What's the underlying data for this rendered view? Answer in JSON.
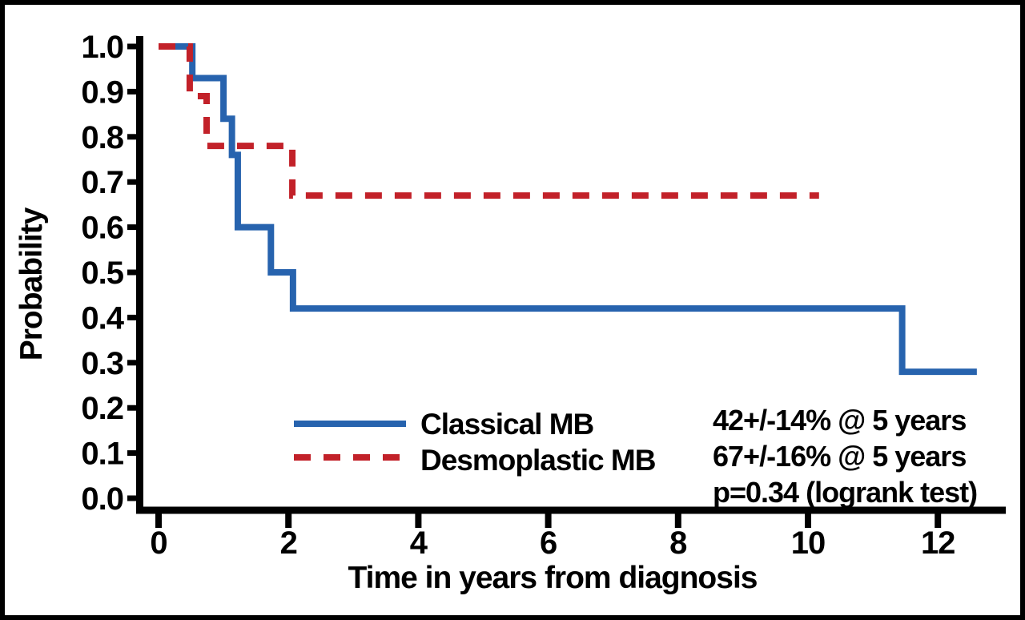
{
  "figure": {
    "background": "#ffffff",
    "border_color": "#000000"
  },
  "chart_data": {
    "type": "line",
    "subtype": "kaplan-meier-step",
    "title": "",
    "xlabel": "Time in years from diagnosis",
    "ylabel": "Probability",
    "xlim": [
      0,
      13
    ],
    "ylim": [
      0.0,
      1.0
    ],
    "xticks": [
      "0",
      "2",
      "4",
      "6",
      "8",
      "10",
      "12"
    ],
    "yticks": [
      "1.0",
      "0.9",
      "0.8",
      "0.7",
      "0.6",
      "0.5",
      "0.4",
      "0.3",
      "0.2",
      "0.1",
      "0.0"
    ],
    "grid": false,
    "legend_position": "inside-bottom-left",
    "axis_color": "#000000",
    "series": [
      {
        "name": "Classical MB",
        "color": "#2763ae",
        "line_style": "solid",
        "points": [
          [
            0,
            1.0
          ],
          [
            0.52,
            1.0
          ],
          [
            0.52,
            0.93
          ],
          [
            1.0,
            0.93
          ],
          [
            1.0,
            0.84
          ],
          [
            1.13,
            0.84
          ],
          [
            1.13,
            0.76
          ],
          [
            1.22,
            0.76
          ],
          [
            1.22,
            0.6
          ],
          [
            1.73,
            0.6
          ],
          [
            1.73,
            0.5
          ],
          [
            2.07,
            0.5
          ],
          [
            2.07,
            0.42
          ],
          [
            11.45,
            0.42
          ],
          [
            11.45,
            0.28
          ],
          [
            12.6,
            0.28
          ]
        ]
      },
      {
        "name": "Desmoplastic MB",
        "color": "#c22129",
        "line_style": "dashed",
        "points": [
          [
            0,
            1.0
          ],
          [
            0.48,
            1.0
          ],
          [
            0.48,
            0.89
          ],
          [
            0.74,
            0.89
          ],
          [
            0.74,
            0.78
          ],
          [
            2.06,
            0.78
          ],
          [
            2.06,
            0.67
          ],
          [
            10.17,
            0.67
          ]
        ]
      }
    ],
    "annotations": [
      "42+/-14% @ 5 years",
      "67+/-16% @ 5 years",
      "p=0.34 (logrank test)"
    ]
  }
}
